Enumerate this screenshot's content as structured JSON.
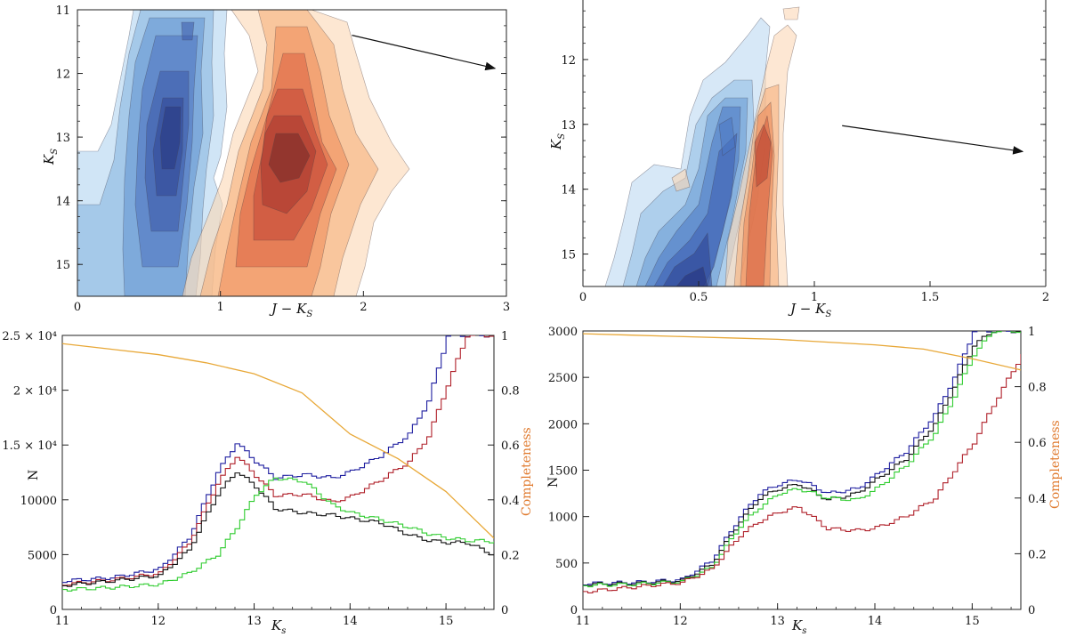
{
  "chart_data": [
    {
      "type": "contour",
      "panel": "top-left",
      "xlabel": "J − K",
      "xlabel_sub": "S",
      "ylabel": "K",
      "ylabel_sub": "S",
      "xlim": [
        0,
        3
      ],
      "ylim": [
        15.5,
        11
      ],
      "x_ticks": [
        0,
        1,
        2,
        3
      ],
      "y_ticks": [
        11,
        12,
        13,
        14,
        15
      ],
      "y_inverted": true,
      "reddening_arrow": {
        "from": [
          1.92,
          11.4
        ],
        "to": [
          2.92,
          11.92
        ]
      },
      "series": [
        {
          "color": "#3b6db3",
          "peaks": [
            {
              "x": 0.62,
              "y": 12.7
            },
            {
              "x": 0.78,
              "y": 11.3
            }
          ]
        },
        {
          "color": "#d4462f",
          "peaks": [
            {
              "x": 1.45,
              "y": 13.2
            }
          ]
        }
      ]
    },
    {
      "type": "contour",
      "panel": "top-right",
      "xlabel": "J − K",
      "xlabel_sub": "S",
      "ylabel": "K",
      "ylabel_sub": "S",
      "xlim": [
        0,
        2
      ],
      "ylim": [
        15.5,
        11
      ],
      "x_ticks": [
        "0",
        "0.5",
        "1",
        "1.5",
        "2"
      ],
      "y_ticks": [
        12,
        13,
        14,
        15
      ],
      "y_inverted": true,
      "reddening_arrow": {
        "from": [
          1.12,
          13.02
        ],
        "to": [
          1.9,
          13.42
        ]
      },
      "series": [
        {
          "color": "#3b6db3",
          "peaks": [
            {
              "x": 0.5,
              "y": 15.3
            },
            {
              "x": 0.62,
              "y": 13.2
            }
          ]
        },
        {
          "color": "#d4462f",
          "peaks": [
            {
              "x": 0.78,
              "y": 12.8
            },
            {
              "x": 0.8,
              "y": 13.3
            }
          ]
        }
      ]
    },
    {
      "type": "step",
      "panel": "bottom-left",
      "xlabel": "K",
      "xlabel_sub": "s",
      "ylabel": "N",
      "y2label": "Completeness",
      "xlim": [
        11,
        15.5
      ],
      "ylim": [
        0,
        25000
      ],
      "y2lim": [
        0,
        1
      ],
      "x_ticks": [
        11,
        12,
        13,
        14,
        15
      ],
      "y_tick_labels": [
        {
          "v": 0,
          "text": "0"
        },
        {
          "v": 5000,
          "text": "5000"
        },
        {
          "v": 10000,
          "text": "10000"
        },
        {
          "v": 15000,
          "text": "1.5 × 10⁴"
        },
        {
          "v": 20000,
          "text": "2 × 10⁴"
        },
        {
          "v": 25000,
          "text": "2.5 × 10⁴"
        }
      ],
      "y2_ticks": [
        "0",
        "0.2",
        "0.4",
        "0.6",
        "0.8",
        "1"
      ],
      "series": [
        {
          "color": "#1f1fa0",
          "x": [
            11,
            11.5,
            12,
            12.3,
            12.6,
            12.8,
            13.0,
            13.2,
            13.5,
            13.8,
            14.0,
            14.3,
            14.6,
            14.8,
            15.0,
            15.2
          ],
          "y": [
            2600,
            2900,
            3700,
            6500,
            12500,
            15200,
            13500,
            12000,
            12300,
            12000,
            12600,
            14000,
            16000,
            19000,
            25000,
            25000
          ]
        },
        {
          "color": "#b0202a",
          "x": [
            11,
            11.5,
            12,
            12.3,
            12.6,
            12.8,
            13.0,
            13.2,
            13.5,
            13.8,
            14.0,
            14.3,
            14.6,
            14.8,
            15.0,
            15.2
          ],
          "y": [
            2300,
            2700,
            3300,
            6000,
            11500,
            14000,
            12200,
            10400,
            10500,
            9800,
            10300,
            11800,
            13500,
            15800,
            20500,
            25000
          ]
        },
        {
          "color": "#111111",
          "x": [
            11,
            11.5,
            12,
            12.3,
            12.6,
            12.8,
            13.0,
            13.2,
            13.5,
            13.8,
            14.0,
            14.3,
            14.6,
            14.8,
            15.0,
            15.2,
            15.5
          ],
          "y": [
            2200,
            2600,
            3100,
            5400,
            10500,
            12600,
            11200,
            9200,
            8800,
            8600,
            8300,
            7900,
            6800,
            6300,
            6100,
            6100,
            4900
          ]
        },
        {
          "color": "#2fcc2f",
          "x": [
            11,
            11.5,
            12,
            12.3,
            12.6,
            12.8,
            13.0,
            13.2,
            13.5,
            13.8,
            14.0,
            14.3,
            14.6,
            14.8,
            15.0,
            15.2,
            15.5
          ],
          "y": [
            1800,
            2000,
            2300,
            3300,
            5000,
            7500,
            10500,
            12000,
            11700,
            9500,
            8800,
            8200,
            7500,
            6900,
            6500,
            6300,
            6200
          ]
        }
      ],
      "completeness": {
        "color": "#e8a838",
        "x": [
          11,
          11.5,
          12,
          12.5,
          13.0,
          13.5,
          14.0,
          14.5,
          15.0,
          15.5
        ],
        "y": [
          0.97,
          0.95,
          0.93,
          0.9,
          0.86,
          0.79,
          0.64,
          0.55,
          0.43,
          0.26
        ]
      }
    },
    {
      "type": "step",
      "panel": "bottom-right",
      "xlabel": "K",
      "xlabel_sub": "s",
      "ylabel": "N",
      "y2label": "Completeness",
      "xlim": [
        11,
        15.5
      ],
      "ylim": [
        0,
        3000
      ],
      "y2lim": [
        0,
        1
      ],
      "x_ticks": [
        11,
        12,
        13,
        14,
        15
      ],
      "y_tick_labels": [
        {
          "v": 0,
          "text": "0"
        },
        {
          "v": 500,
          "text": "500"
        },
        {
          "v": 1000,
          "text": "1000"
        },
        {
          "v": 1500,
          "text": "1500"
        },
        {
          "v": 2000,
          "text": "2000"
        },
        {
          "v": 2500,
          "text": "2500"
        },
        {
          "v": 3000,
          "text": "3000"
        }
      ],
      "y2_ticks": [
        "0",
        "0.2",
        "0.4",
        "0.6",
        "0.8",
        "1"
      ],
      "series": [
        {
          "color": "#1f1fa0",
          "x": [
            11,
            11.5,
            12,
            12.3,
            12.6,
            12.8,
            13.0,
            13.2,
            13.5,
            13.8,
            14.0,
            14.3,
            14.6,
            14.8,
            15.0,
            15.2
          ],
          "y": [
            280,
            290,
            320,
            520,
            1000,
            1250,
            1350,
            1400,
            1250,
            1300,
            1450,
            1700,
            2100,
            2500,
            3000,
            3000
          ]
        },
        {
          "color": "#111111",
          "x": [
            11,
            11.5,
            12,
            12.3,
            12.6,
            12.8,
            13.0,
            13.2,
            13.5,
            13.8,
            14.0,
            14.3,
            14.6,
            14.8,
            15.0,
            15.2
          ],
          "y": [
            270,
            280,
            310,
            480,
            950,
            1200,
            1300,
            1350,
            1180,
            1250,
            1400,
            1620,
            2000,
            2400,
            2850,
            3000
          ]
        },
        {
          "color": "#2fcc2f",
          "x": [
            11,
            11.5,
            12,
            12.3,
            12.6,
            12.8,
            13.0,
            13.2,
            13.5,
            13.8,
            14.0,
            14.3,
            14.6,
            14.8,
            15.0,
            15.2,
            15.5
          ],
          "y": [
            260,
            270,
            300,
            450,
            900,
            1100,
            1250,
            1300,
            1200,
            1180,
            1300,
            1550,
            1900,
            2300,
            2750,
            3000,
            3000
          ]
        },
        {
          "color": "#b0202a",
          "x": [
            11,
            11.5,
            12,
            12.3,
            12.6,
            12.8,
            13.0,
            13.2,
            13.5,
            13.8,
            14.0,
            14.3,
            14.6,
            14.8,
            15.0,
            15.2,
            15.5
          ],
          "y": [
            190,
            240,
            290,
            430,
            800,
            950,
            1050,
            1100,
            870,
            850,
            880,
            1000,
            1200,
            1500,
            1800,
            2200,
            2750
          ]
        }
      ],
      "completeness": {
        "color": "#e8a838",
        "x": [
          11,
          11.5,
          12,
          12.5,
          13.0,
          13.5,
          14.0,
          14.5,
          15.0,
          15.5
        ],
        "y": [
          0.99,
          0.985,
          0.98,
          0.975,
          0.97,
          0.96,
          0.95,
          0.935,
          0.9,
          0.86
        ]
      }
    }
  ]
}
